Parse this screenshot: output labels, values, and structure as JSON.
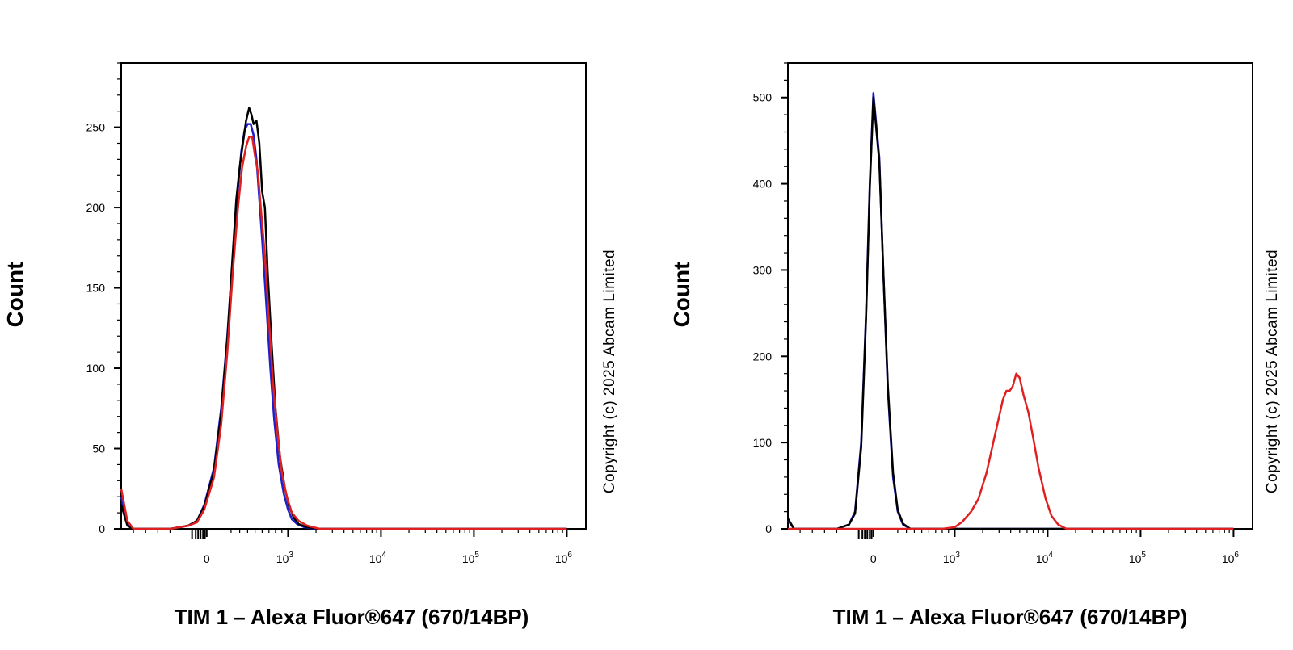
{
  "copyright": "Copyright (c) 2025 Abcam Limited",
  "colors": {
    "series": [
      "#1f1fcc",
      "#000000",
      "#e02020"
    ]
  },
  "chart_data": [
    {
      "type": "line",
      "xlabel": "TIM 1 – Alexa Fluor®647 (670/14BP)",
      "ylabel": "Count",
      "x_scale": "biexponential",
      "xlim": [
        -700,
        1000000
      ],
      "ylim": [
        0,
        290
      ],
      "yticks": [
        0,
        50,
        100,
        150,
        200,
        250
      ],
      "xticks": [
        {
          "value": 0,
          "base": "0",
          "exp": ""
        },
        {
          "value": 1000,
          "base": "10",
          "exp": "3"
        },
        {
          "value": 10000,
          "base": "10",
          "exp": "4"
        },
        {
          "value": 100000,
          "base": "10",
          "exp": "5"
        },
        {
          "value": 1000000,
          "base": "10",
          "exp": "6"
        }
      ],
      "copyright": "Copyright (c) 2025 Abcam Limited",
      "series": [
        {
          "color": "#1f1fcc",
          "points": [
            [
              -700,
              20
            ],
            [
              -650,
              3
            ],
            [
              -600,
              0
            ],
            [
              -300,
              0
            ],
            [
              -150,
              2
            ],
            [
              -80,
              5
            ],
            [
              -20,
              15
            ],
            [
              40,
              38
            ],
            [
              100,
              75
            ],
            [
              160,
              120
            ],
            [
              220,
              170
            ],
            [
              280,
              212
            ],
            [
              320,
              235
            ],
            [
              360,
              248
            ],
            [
              400,
              252
            ],
            [
              440,
              252
            ],
            [
              480,
              245
            ],
            [
              520,
              230
            ],
            [
              560,
              205
            ],
            [
              600,
              180
            ],
            [
              660,
              140
            ],
            [
              720,
              100
            ],
            [
              780,
              68
            ],
            [
              850,
              40
            ],
            [
              930,
              22
            ],
            [
              1000,
              12
            ],
            [
              1100,
              6
            ],
            [
              1250,
              3
            ],
            [
              1500,
              1
            ],
            [
              2000,
              0
            ],
            [
              1000000,
              0
            ]
          ]
        },
        {
          "color": "#000000",
          "points": [
            [
              -700,
              15
            ],
            [
              -650,
              2
            ],
            [
              -600,
              0
            ],
            [
              -300,
              0
            ],
            [
              -150,
              2
            ],
            [
              -80,
              5
            ],
            [
              -20,
              14
            ],
            [
              40,
              36
            ],
            [
              100,
              72
            ],
            [
              160,
              118
            ],
            [
              220,
              172
            ],
            [
              260,
              205
            ],
            [
              300,
              225
            ],
            [
              340,
              240
            ],
            [
              380,
              254
            ],
            [
              420,
              262
            ],
            [
              450,
              258
            ],
            [
              480,
              252
            ],
            [
              520,
              254
            ],
            [
              560,
              240
            ],
            [
              600,
              210
            ],
            [
              640,
              200
            ],
            [
              680,
              160
            ],
            [
              740,
              115
            ],
            [
              800,
              75
            ],
            [
              870,
              45
            ],
            [
              950,
              25
            ],
            [
              1030,
              14
            ],
            [
              1150,
              7
            ],
            [
              1300,
              3
            ],
            [
              1600,
              1
            ],
            [
              2200,
              0
            ],
            [
              1000000,
              0
            ]
          ]
        },
        {
          "color": "#e02020",
          "points": [
            [
              -700,
              25
            ],
            [
              -650,
              5
            ],
            [
              -600,
              0
            ],
            [
              -300,
              0
            ],
            [
              -150,
              2
            ],
            [
              -80,
              4
            ],
            [
              -20,
              12
            ],
            [
              40,
              32
            ],
            [
              100,
              65
            ],
            [
              160,
              110
            ],
            [
              220,
              160
            ],
            [
              280,
              200
            ],
            [
              330,
              225
            ],
            [
              380,
              238
            ],
            [
              420,
              244
            ],
            [
              460,
              244
            ],
            [
              500,
              232
            ],
            [
              540,
              222
            ],
            [
              580,
              200
            ],
            [
              640,
              170
            ],
            [
              700,
              130
            ],
            [
              760,
              92
            ],
            [
              830,
              60
            ],
            [
              900,
              35
            ],
            [
              980,
              20
            ],
            [
              1100,
              10
            ],
            [
              1300,
              5
            ],
            [
              1600,
              2
            ],
            [
              2200,
              0
            ],
            [
              1000000,
              0
            ]
          ]
        }
      ]
    },
    {
      "type": "line",
      "xlabel": "TIM 1 – Alexa Fluor®647 (670/14BP)",
      "ylabel": "Count",
      "x_scale": "biexponential",
      "xlim": [
        -700,
        1000000
      ],
      "ylim": [
        0,
        540
      ],
      "yticks": [
        0,
        100,
        200,
        300,
        400,
        500
      ],
      "xticks": [
        {
          "value": 0,
          "base": "0",
          "exp": ""
        },
        {
          "value": 1000,
          "base": "10",
          "exp": "3"
        },
        {
          "value": 10000,
          "base": "10",
          "exp": "4"
        },
        {
          "value": 100000,
          "base": "10",
          "exp": "5"
        },
        {
          "value": 1000000,
          "base": "10",
          "exp": "6"
        }
      ],
      "copyright": "Copyright (c) 2025 Abcam Limited",
      "series": [
        {
          "color": "#1f1fcc",
          "points": [
            [
              -700,
              10
            ],
            [
              -650,
              0
            ],
            [
              -300,
              0
            ],
            [
              -200,
              5
            ],
            [
              -150,
              20
            ],
            [
              -100,
              100
            ],
            [
              -60,
              250
            ],
            [
              -30,
              400
            ],
            [
              0,
              505
            ],
            [
              30,
              430
            ],
            [
              60,
              300
            ],
            [
              100,
              160
            ],
            [
              150,
              60
            ],
            [
              200,
              20
            ],
            [
              260,
              5
            ],
            [
              350,
              0
            ],
            [
              1000000,
              0
            ]
          ]
        },
        {
          "color": "#000000",
          "points": [
            [
              -700,
              12
            ],
            [
              -650,
              0
            ],
            [
              -300,
              0
            ],
            [
              -200,
              5
            ],
            [
              -150,
              18
            ],
            [
              -100,
              95
            ],
            [
              -60,
              245
            ],
            [
              -30,
              395
            ],
            [
              0,
              500
            ],
            [
              30,
              425
            ],
            [
              60,
              300
            ],
            [
              100,
              165
            ],
            [
              150,
              65
            ],
            [
              200,
              22
            ],
            [
              260,
              6
            ],
            [
              350,
              0
            ],
            [
              1000000,
              0
            ]
          ]
        },
        {
          "color": "#e02020",
          "points": [
            [
              -700,
              0
            ],
            [
              800,
              0
            ],
            [
              1000,
              2
            ],
            [
              1200,
              8
            ],
            [
              1500,
              20
            ],
            [
              1800,
              35
            ],
            [
              2200,
              65
            ],
            [
              2600,
              100
            ],
            [
              3000,
              130
            ],
            [
              3300,
              150
            ],
            [
              3600,
              160
            ],
            [
              3900,
              160
            ],
            [
              4200,
              165
            ],
            [
              4600,
              180
            ],
            [
              5000,
              175
            ],
            [
              5500,
              155
            ],
            [
              6200,
              135
            ],
            [
              7000,
              105
            ],
            [
              8000,
              70
            ],
            [
              9500,
              35
            ],
            [
              11000,
              15
            ],
            [
              13000,
              5
            ],
            [
              16000,
              0
            ],
            [
              1000000,
              0
            ]
          ]
        }
      ]
    }
  ]
}
